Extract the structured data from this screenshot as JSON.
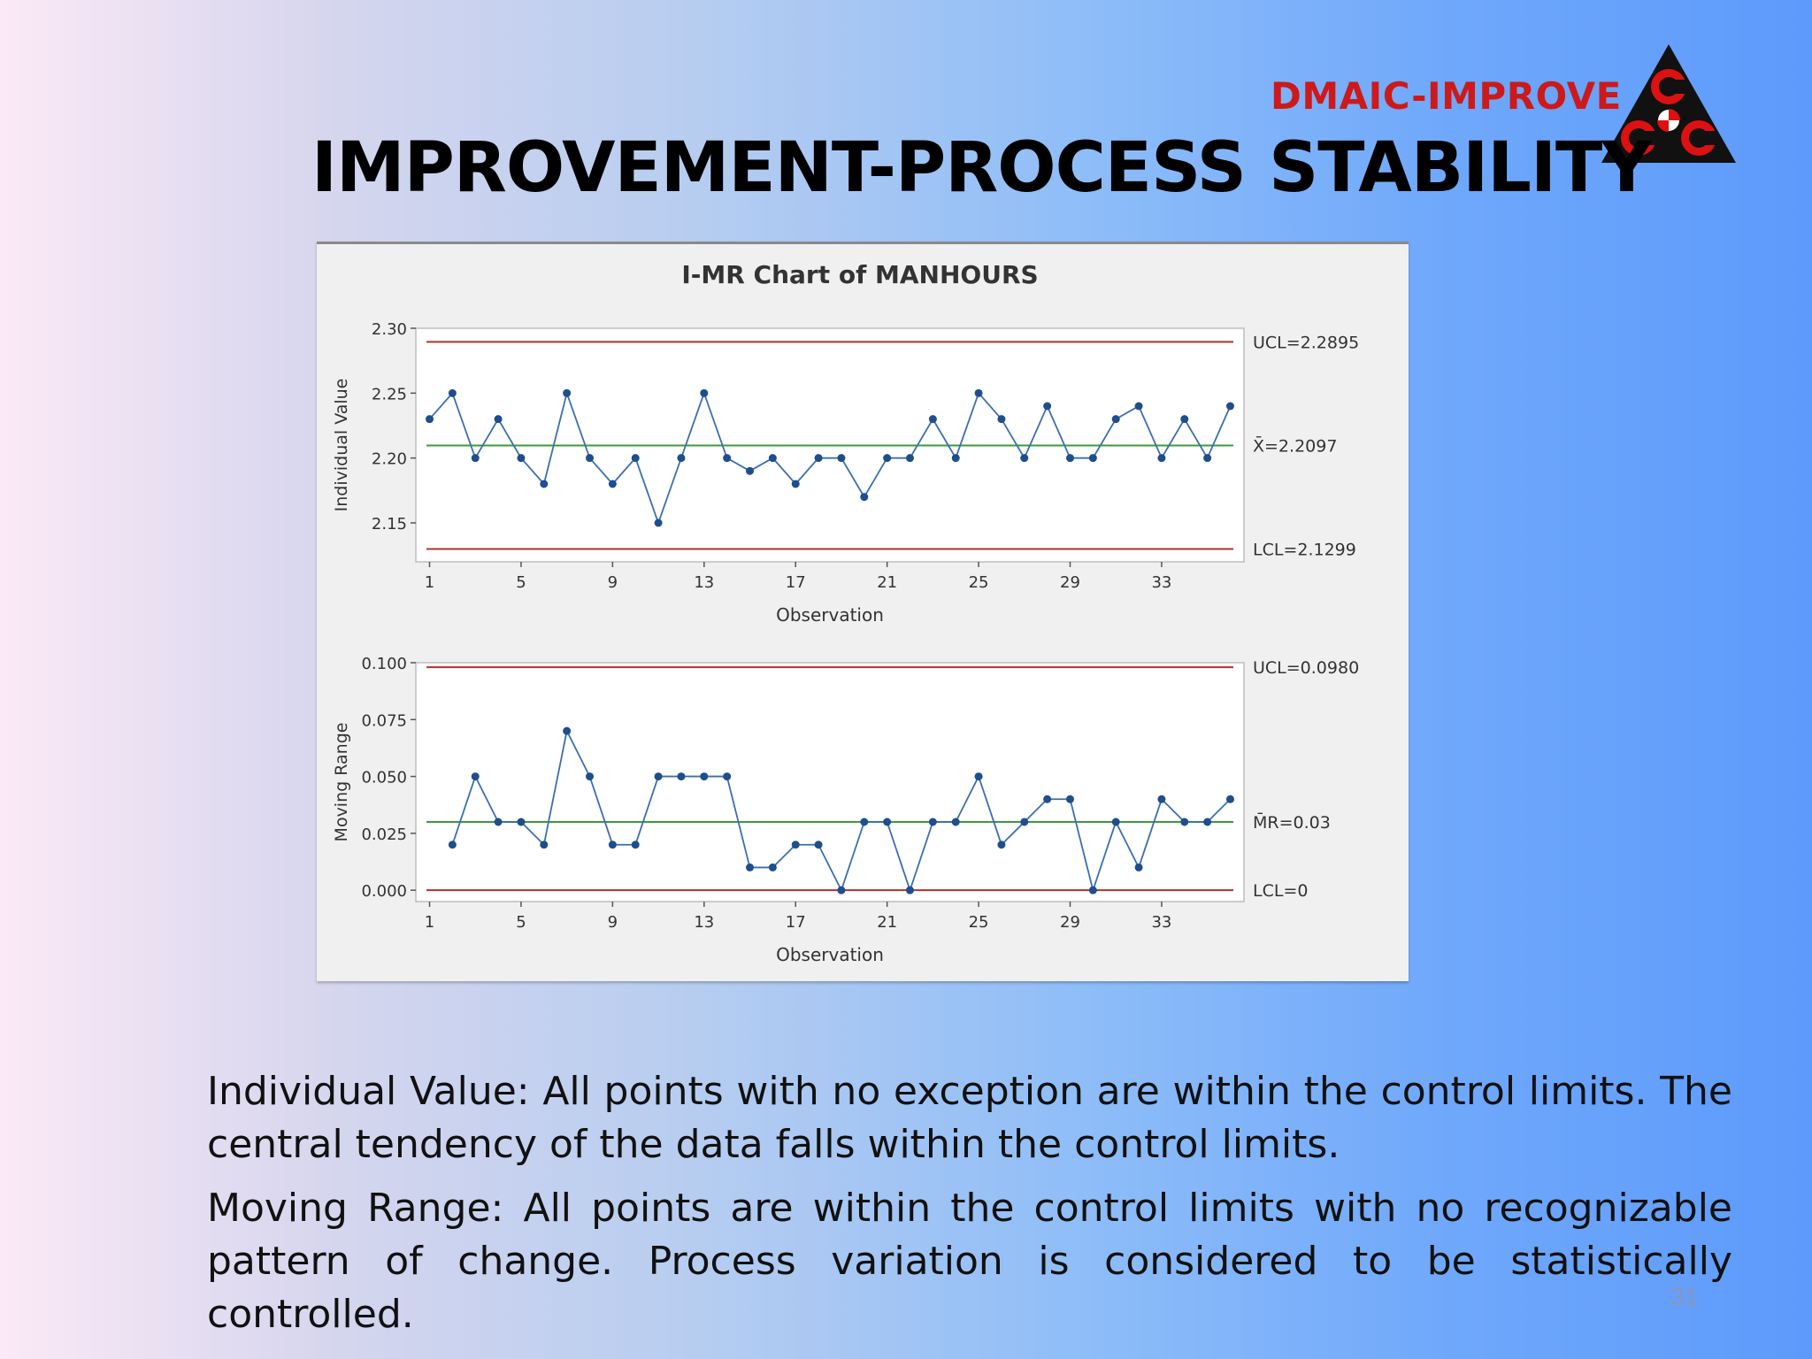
{
  "slide": {
    "tag": "DMAIC-IMPROVE",
    "title": "IMPROVEMENT-PROCESS STABILITY",
    "paragraph1": "Individual Value: All points with no exception are within the control limits. The central tendency of the data falls within the control limits.",
    "paragraph2": "Moving Range: All points are within the control limits with no recognizable pattern of change. Process variation is considered to be statistically controlled.",
    "page_number": "31",
    "logo_letters": [
      "C",
      "C",
      "C"
    ]
  },
  "chart_data": [
    {
      "type": "line",
      "title": "I-MR Chart of MANHOURS",
      "xlabel": "Observation",
      "ylabel": "Individual Value",
      "x": [
        1,
        2,
        3,
        4,
        5,
        6,
        7,
        8,
        9,
        10,
        11,
        12,
        13,
        14,
        15,
        16,
        17,
        18,
        19,
        20,
        21,
        22,
        23,
        24,
        25,
        26,
        27,
        28,
        29,
        30,
        31,
        32,
        33,
        34,
        35,
        36
      ],
      "values": [
        2.23,
        2.25,
        2.2,
        2.23,
        2.2,
        2.18,
        2.25,
        2.2,
        2.18,
        2.2,
        2.15,
        2.2,
        2.25,
        2.2,
        2.19,
        2.2,
        2.18,
        2.2,
        2.2,
        2.17,
        2.2,
        2.2,
        2.23,
        2.2,
        2.25,
        2.23,
        2.2,
        2.24,
        2.2,
        2.2,
        2.23,
        2.24,
        2.2,
        2.23,
        2.2,
        2.24
      ],
      "xticks": [
        "1",
        "5",
        "9",
        "13",
        "17",
        "21",
        "25",
        "29",
        "33"
      ],
      "yticks": [
        "2.15",
        "2.20",
        "2.25",
        "2.30"
      ],
      "ylim": [
        2.12,
        2.3
      ],
      "center": 2.2097,
      "ucl": 2.2895,
      "lcl": 2.1299,
      "ucl_label": "UCL=2.2895",
      "center_label": "X̄=2.2097",
      "lcl_label": "LCL=2.1299",
      "colors": {
        "points": "#1f4e8c",
        "line": "#3a6fb0",
        "limit": "#b03030",
        "center": "#3c9a3c"
      }
    },
    {
      "type": "line",
      "xlabel": "Observation",
      "ylabel": "Moving Range",
      "x": [
        2,
        3,
        4,
        5,
        6,
        7,
        8,
        9,
        10,
        11,
        12,
        13,
        14,
        15,
        16,
        17,
        18,
        19,
        20,
        21,
        22,
        23,
        24,
        25,
        26,
        27,
        28,
        29,
        30,
        31,
        32,
        33,
        34,
        35,
        36
      ],
      "values": [
        0.02,
        0.05,
        0.03,
        0.03,
        0.02,
        0.07,
        0.05,
        0.02,
        0.02,
        0.05,
        0.05,
        0.05,
        0.05,
        0.01,
        0.01,
        0.02,
        0.02,
        0.0,
        0.03,
        0.03,
        0.0,
        0.03,
        0.03,
        0.05,
        0.02,
        0.03,
        0.04,
        0.04,
        0.0,
        0.03,
        0.01,
        0.04,
        0.03,
        0.03,
        0.04
      ],
      "xticks": [
        "1",
        "5",
        "9",
        "13",
        "17",
        "21",
        "25",
        "29",
        "33"
      ],
      "yticks": [
        "0.000",
        "0.025",
        "0.050",
        "0.075",
        "0.100"
      ],
      "ylim": [
        -0.005,
        0.1
      ],
      "center": 0.03,
      "ucl": 0.098,
      "lcl": 0,
      "ucl_label": "UCL=0.0980",
      "center_label": "M̄R=0.03",
      "lcl_label": "LCL=0",
      "colors": {
        "points": "#1f4e8c",
        "line": "#3a6fb0",
        "limit": "#b03030",
        "center": "#3c9a3c"
      }
    }
  ]
}
